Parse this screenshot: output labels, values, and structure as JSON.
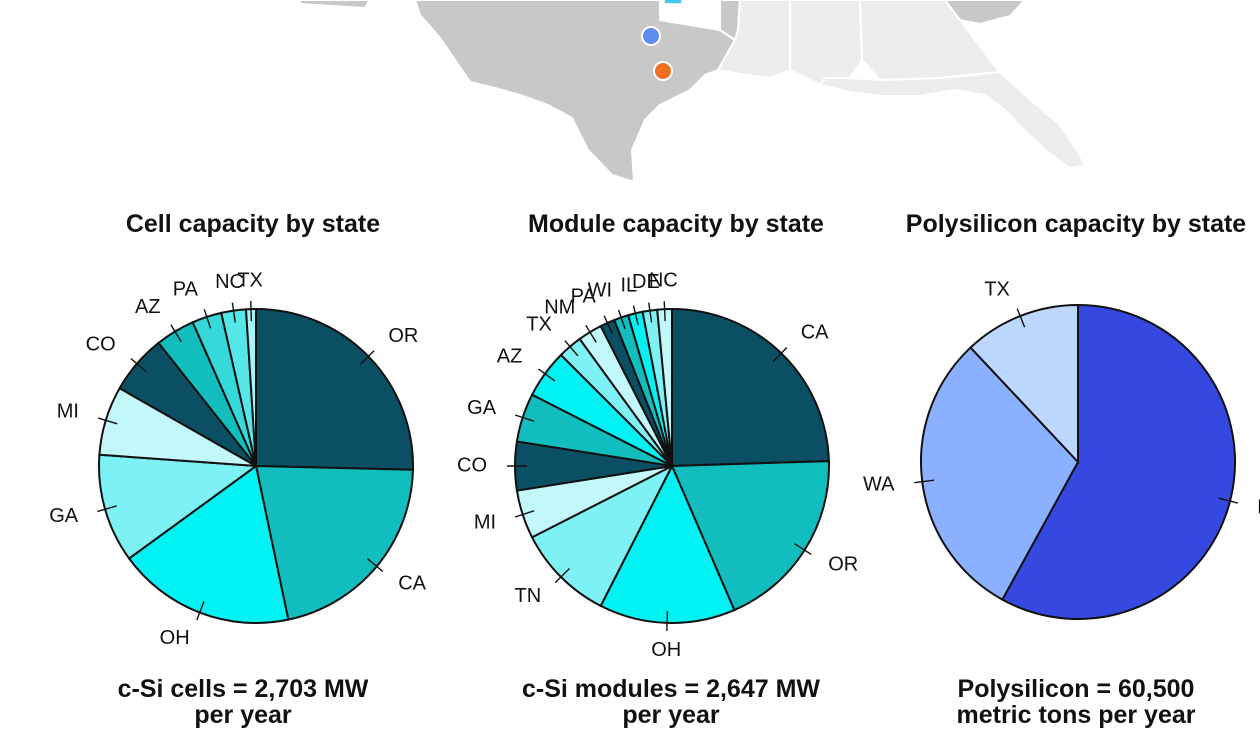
{
  "map": {
    "colors": {
      "state_fill": "#c8c8c8",
      "state_light": "#ececec",
      "state_border": "#ffffff"
    },
    "markers": [
      {
        "name": "cell-facility-marker",
        "color": "#5b8def"
      },
      {
        "name": "module-facility-marker",
        "color": "#f07020"
      },
      {
        "name": "polysilicon-facility-marker",
        "color": "#48c8e8"
      }
    ]
  },
  "chart_data": [
    {
      "type": "pie",
      "title": "Cell capacity by state",
      "summary_line1": "c-Si cells = 2,703 MW",
      "summary_line2": "per year",
      "labels": [
        "OR",
        "CA",
        "OH",
        "GA",
        "MI",
        "CO",
        "AZ",
        "PA",
        "NC",
        "TX"
      ],
      "values": [
        25,
        21,
        18,
        11,
        7,
        6,
        4,
        3,
        2.5,
        1
      ],
      "colors": [
        "#0a4f63",
        "#12bdbd",
        "#00f2f2",
        "#7ef1f5",
        "#c2f8fa",
        "#0a4f63",
        "#12bdbd",
        "#35d9d9",
        "#55e7e7",
        "#a3f5f7"
      ]
    },
    {
      "type": "pie",
      "title": "Module capacity by state",
      "summary_line1": "c-Si modules = 2,647 MW",
      "summary_line2": "per year",
      "labels": [
        "CA",
        "OR",
        "OH",
        "TN",
        "MI",
        "CO",
        "GA",
        "AZ",
        "TX",
        "NM",
        "PA",
        "WI",
        "IL",
        "DE",
        "NC"
      ],
      "values": [
        24.5,
        19,
        14,
        10,
        5,
        5,
        5,
        5,
        2.5,
        2.5,
        1.5,
        1.5,
        1.5,
        1.5,
        1.5
      ],
      "colors": [
        "#0a4f63",
        "#12bdbd",
        "#00f2f2",
        "#7ef1f5",
        "#c2f8fa",
        "#0a4f63",
        "#12bdbd",
        "#00f2f2",
        "#7ef1f5",
        "#c2f8fa",
        "#0a4f63",
        "#12bdbd",
        "#00f2f2",
        "#7ef1f5",
        "#c2f8fa"
      ]
    },
    {
      "type": "pie",
      "title": "Polysilicon capacity by state",
      "summary_line1": "Polysilicon = 60,500",
      "summary_line2": "metric tons per year",
      "labels": [
        "MI",
        "WA",
        "TX"
      ],
      "values": [
        58,
        30,
        12
      ],
      "colors": [
        "#3549e0",
        "#8ab0ff",
        "#bcd8ff"
      ]
    }
  ]
}
